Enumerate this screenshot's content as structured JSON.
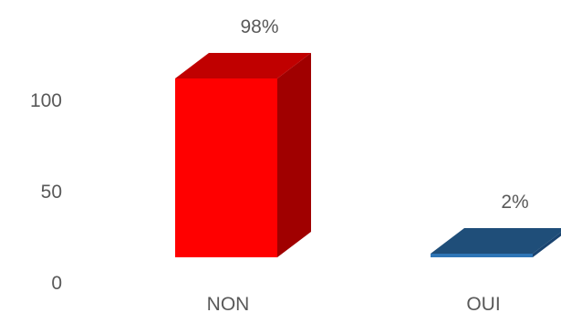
{
  "chart_data": {
    "type": "bar",
    "categories": [
      "NON",
      "OUI"
    ],
    "values": [
      98,
      2
    ],
    "data_labels": [
      "98%",
      "2%"
    ],
    "yticks": [
      0,
      50,
      100
    ],
    "ylim": [
      0,
      120
    ],
    "title": "",
    "xlabel": "",
    "ylabel": "",
    "grid": false,
    "legend": "none",
    "style": "3d-column",
    "colors": {
      "NON": {
        "front": "#ff0000",
        "top": "#c00000",
        "side": "#a00000"
      },
      "OUI": {
        "front": "#2e75b6",
        "top": "#1f4e79",
        "side": "#1a4470"
      }
    }
  }
}
